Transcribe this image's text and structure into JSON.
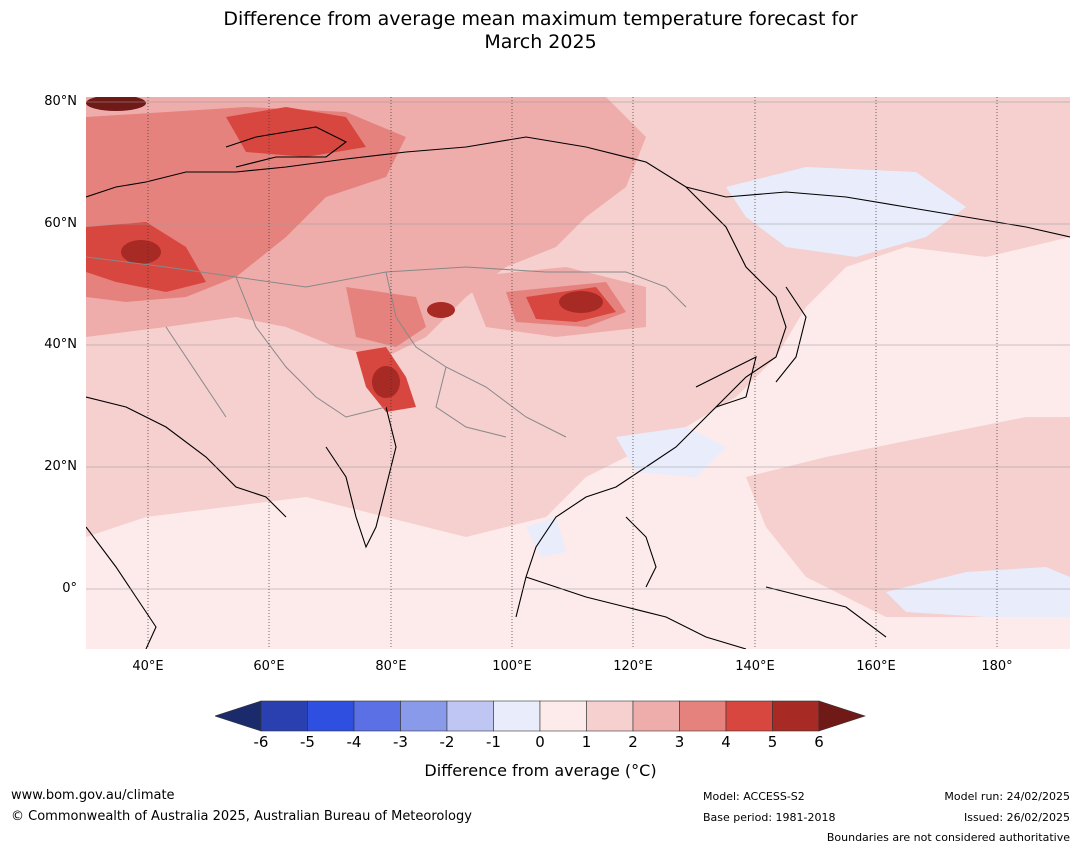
{
  "title_line1": "Difference from average mean maximum temperature forecast for",
  "title_line2": "March 2025",
  "lat_labels": [
    "80°N",
    "60°N",
    "40°N",
    "20°N",
    "0°"
  ],
  "lon_labels": [
    "40°E",
    "60°E",
    "80°E",
    "100°E",
    "120°E",
    "140°E",
    "160°E",
    "180°"
  ],
  "colorbar": {
    "ticks": [
      "-6",
      "-5",
      "-4",
      "-3",
      "-2",
      "-1",
      "0",
      "1",
      "2",
      "3",
      "4",
      "5",
      "6"
    ],
    "colors": [
      "#1b2a6b",
      "#2a3fb0",
      "#2f4fe0",
      "#5a70e4",
      "#8a9aea",
      "#bfc6f3",
      "#e8ecfb",
      "#fcebea",
      "#f5d0cf",
      "#eeadab",
      "#e6827e",
      "#d8473f",
      "#a82a25",
      "#6f1a17"
    ],
    "label": "Difference from average (°C)"
  },
  "footer": {
    "website": "www.bom.gov.au/climate",
    "copyright": "© Commonwealth of Australia 2025, Australian Bureau of Meteorology",
    "model": "Model: ACCESS-S2",
    "base_period": "Base period: 1981-2018",
    "model_run": "Model run: 24/02/2025",
    "issued": "Issued: 26/02/2025",
    "disclaimer": "Boundaries are not considered authoritative"
  }
}
